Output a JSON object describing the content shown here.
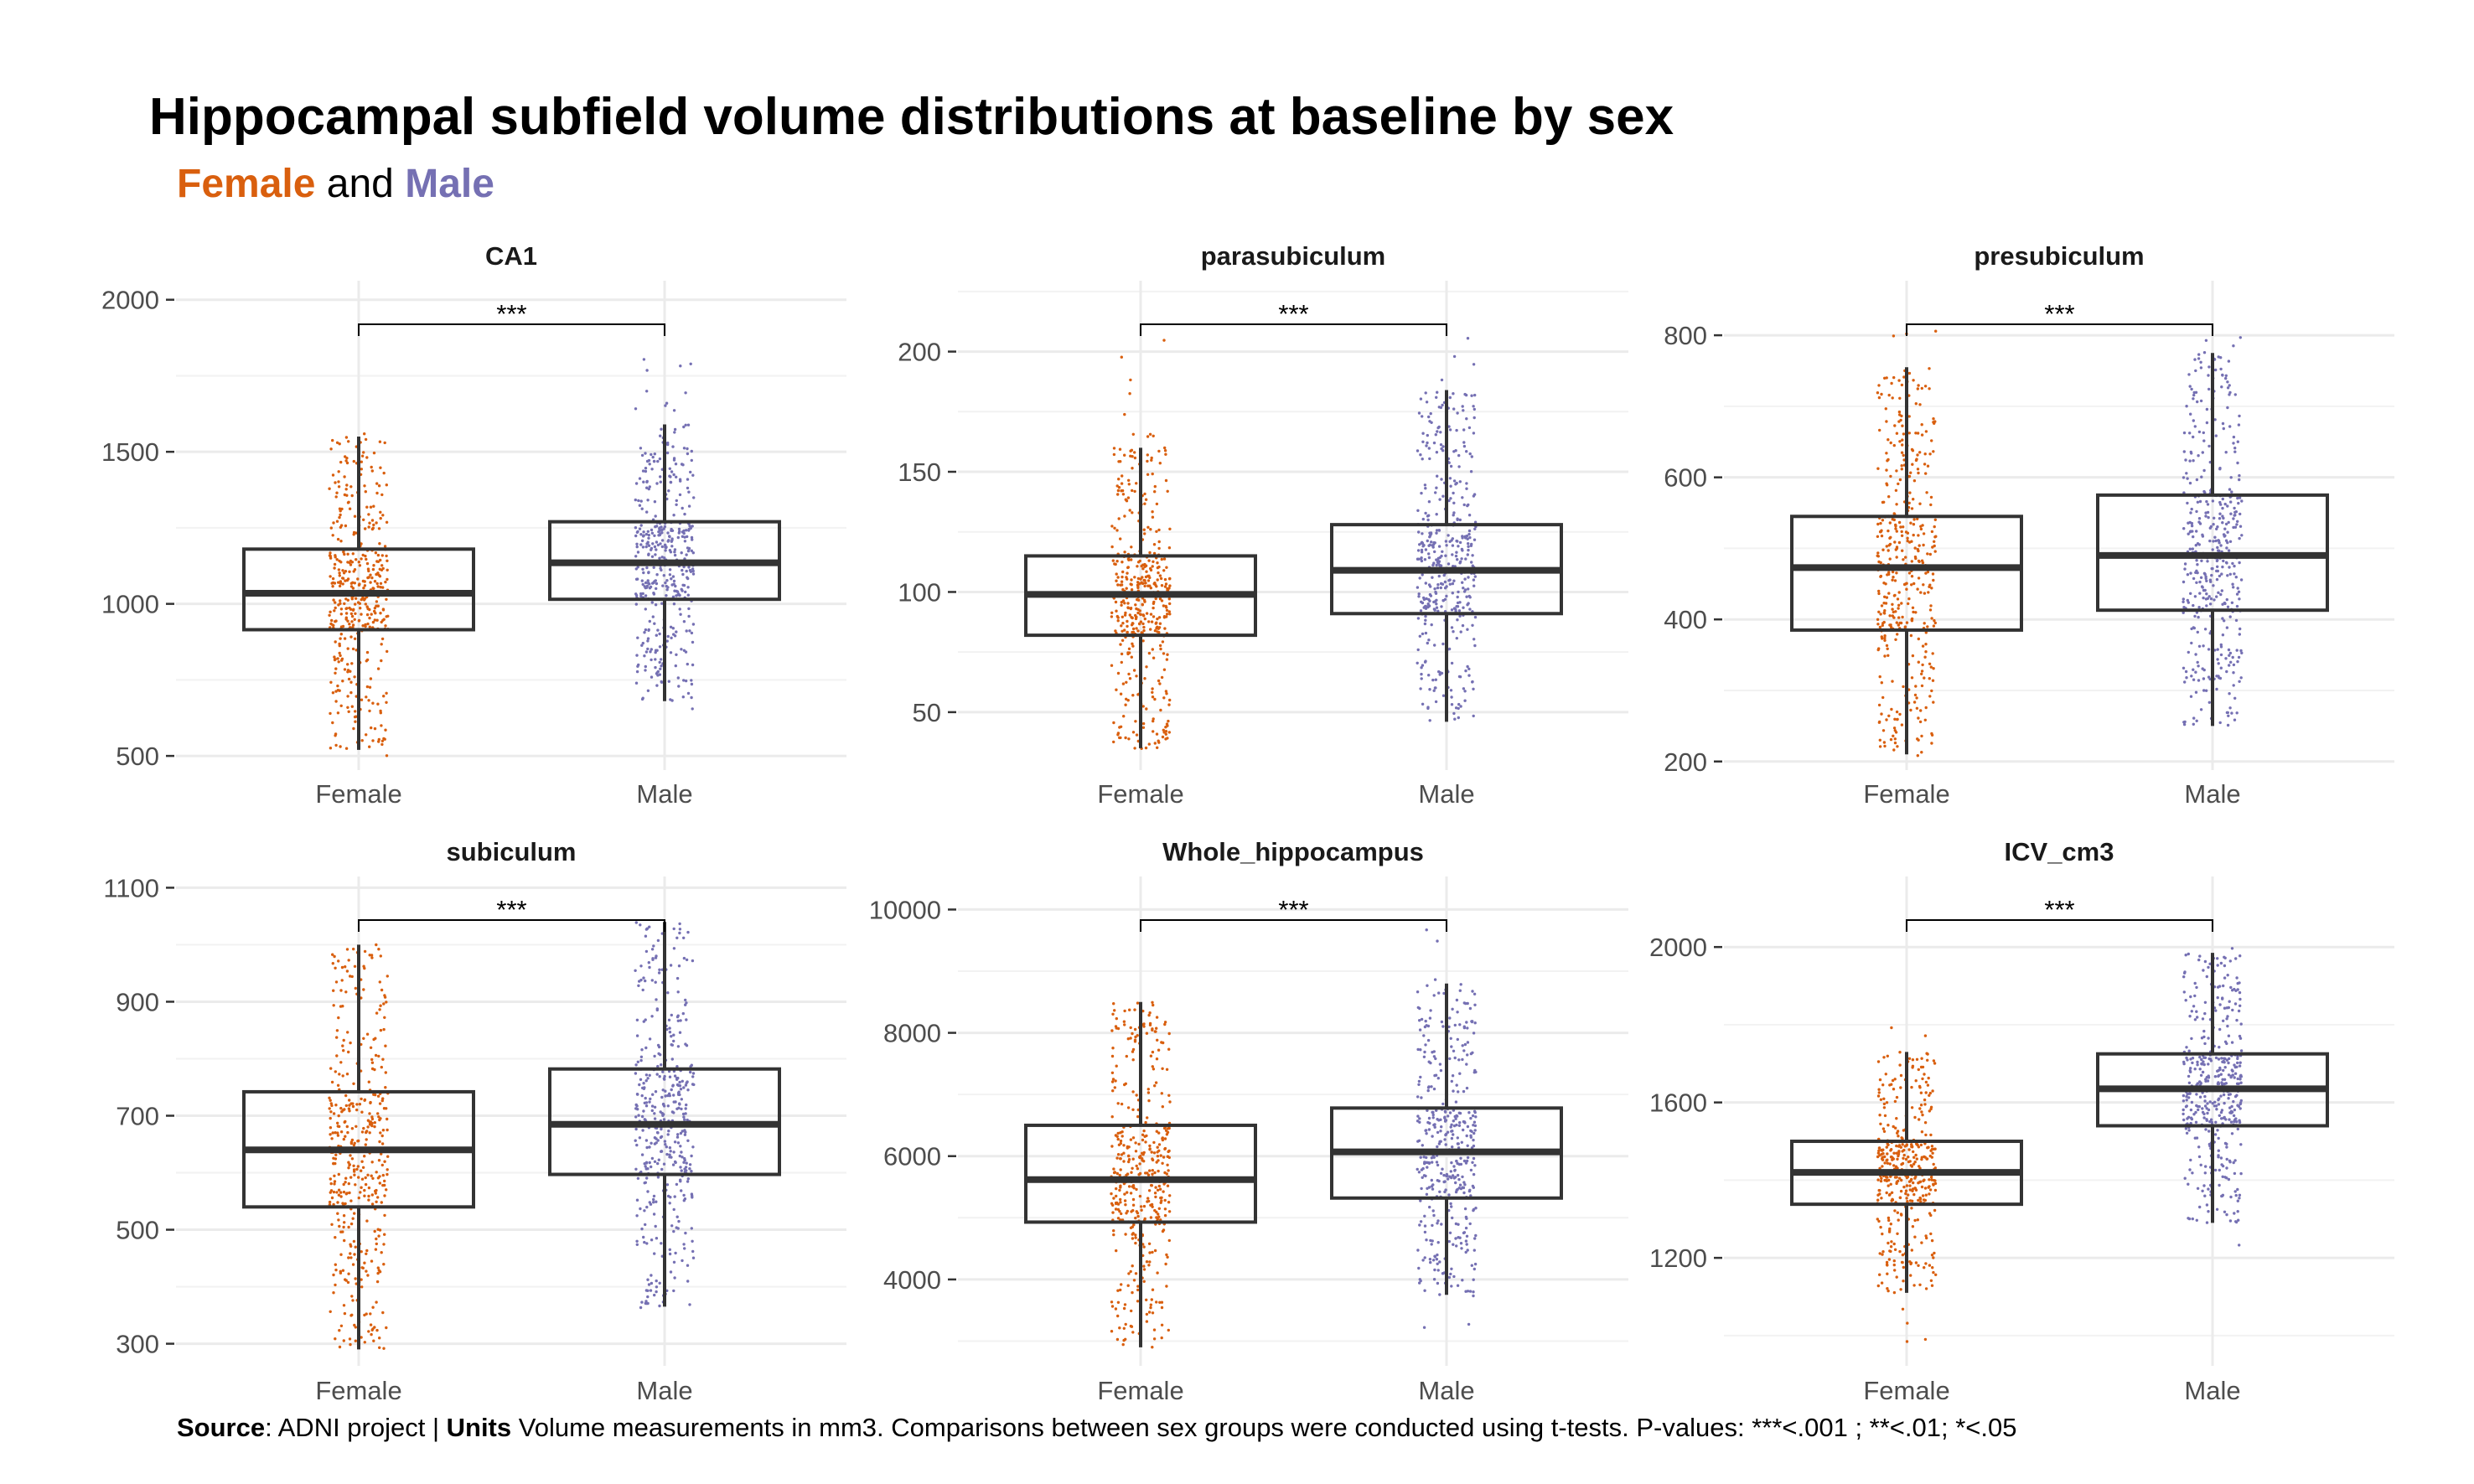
{
  "title": "Hippocampal subfield volume distributions at baseline by sex",
  "subtitle": {
    "female": "Female",
    "and": "and",
    "male": "Male"
  },
  "caption": {
    "source_label": "Source",
    "source_text": ": ADNI project | ",
    "units_label": "Units",
    "units_text": " Volume measurements in mm3. Comparisons between sex groups were conducted using t-tests. P-values: ***<.001 ; **<.01; *<.05"
  },
  "colors": {
    "female": "#d95f0e",
    "male": "#7570b3",
    "box": "#333333",
    "grid": "#ebebeb"
  },
  "chart_data": [
    {
      "type": "box",
      "title": "CA1",
      "categories": [
        "Female",
        "Male"
      ],
      "ylim": [
        470,
        2035
      ],
      "ticks": [
        500,
        1000,
        1500,
        2000
      ],
      "significance": "***",
      "series": [
        {
          "name": "Female",
          "stats": {
            "whisker_low": 520,
            "q1": 915,
            "median": 1035,
            "q3": 1180,
            "whisker_high": 1550
          },
          "points_range": [
            500,
            1560
          ]
        },
        {
          "name": "Male",
          "stats": {
            "whisker_low": 680,
            "q1": 1015,
            "median": 1135,
            "q3": 1270,
            "whisker_high": 1590
          },
          "points_range": [
            640,
            1850
          ]
        }
      ]
    },
    {
      "type": "box",
      "title": "parasubiculum",
      "categories": [
        "Female",
        "Male"
      ],
      "ylim": [
        28,
        226
      ],
      "ticks": [
        50,
        100,
        150,
        200
      ],
      "significance": "***",
      "series": [
        {
          "name": "Female",
          "stats": {
            "whisker_low": 35,
            "q1": 82,
            "median": 99,
            "q3": 115,
            "whisker_high": 160
          },
          "points_range": [
            33,
            210
          ]
        },
        {
          "name": "Male",
          "stats": {
            "whisker_low": 46,
            "q1": 91,
            "median": 109,
            "q3": 128,
            "whisker_high": 184
          },
          "points_range": [
            44,
            210
          ]
        }
      ]
    },
    {
      "type": "box",
      "title": "presubiculum",
      "categories": [
        "Female",
        "Male"
      ],
      "ylim": [
        195,
        865
      ],
      "ticks": [
        200,
        400,
        600,
        800
      ],
      "significance": "***",
      "series": [
        {
          "name": "Female",
          "stats": {
            "whisker_low": 210,
            "q1": 385,
            "median": 473,
            "q3": 545,
            "whisker_high": 755
          },
          "points_range": [
            205,
            810
          ]
        },
        {
          "name": "Male",
          "stats": {
            "whisker_low": 250,
            "q1": 413,
            "median": 490,
            "q3": 575,
            "whisker_high": 775
          },
          "points_range": [
            245,
            830
          ]
        }
      ]
    },
    {
      "type": "box",
      "title": "subiculum",
      "categories": [
        "Female",
        "Male"
      ],
      "ylim": [
        270,
        1105
      ],
      "ticks": [
        300,
        500,
        700,
        900,
        1100
      ],
      "significance": "***",
      "series": [
        {
          "name": "Female",
          "stats": {
            "whisker_low": 290,
            "q1": 540,
            "median": 640,
            "q3": 742,
            "whisker_high": 1000
          },
          "points_range": [
            285,
            1000
          ]
        },
        {
          "name": "Male",
          "stats": {
            "whisker_low": 365,
            "q1": 597,
            "median": 685,
            "q3": 782,
            "whisker_high": 1040
          },
          "points_range": [
            360,
            1040
          ]
        }
      ]
    },
    {
      "type": "box",
      "title": "Whole_hippocampus",
      "categories": [
        "Female",
        "Male"
      ],
      "ylim": [
        2680,
        10400
      ],
      "ticks": [
        4000,
        6000,
        8000,
        10000
      ],
      "significance": "***",
      "series": [
        {
          "name": "Female",
          "stats": {
            "whisker_low": 2900,
            "q1": 4930,
            "median": 5620,
            "q3": 6500,
            "whisker_high": 8500
          },
          "points_range": [
            2880,
            8550
          ]
        },
        {
          "name": "Male",
          "stats": {
            "whisker_low": 3750,
            "q1": 5320,
            "median": 6070,
            "q3": 6780,
            "whisker_high": 8800
          },
          "points_range": [
            3100,
            9750
          ]
        }
      ]
    },
    {
      "type": "box",
      "title": "ICV_cm3",
      "categories": [
        "Female",
        "Male"
      ],
      "ylim": [
        935,
        2160
      ],
      "ticks": [
        1200,
        1600,
        2000
      ],
      "significance": "***",
      "series": [
        {
          "name": "Female",
          "stats": {
            "whisker_low": 1110,
            "q1": 1338,
            "median": 1420,
            "q3": 1500,
            "whisker_high": 1730
          },
          "points_range": [
            960,
            1860
          ]
        },
        {
          "name": "Male",
          "stats": {
            "whisker_low": 1290,
            "q1": 1540,
            "median": 1635,
            "q3": 1725,
            "whisker_high": 1985
          },
          "points_range": [
            1210,
            2110
          ]
        }
      ]
    }
  ]
}
